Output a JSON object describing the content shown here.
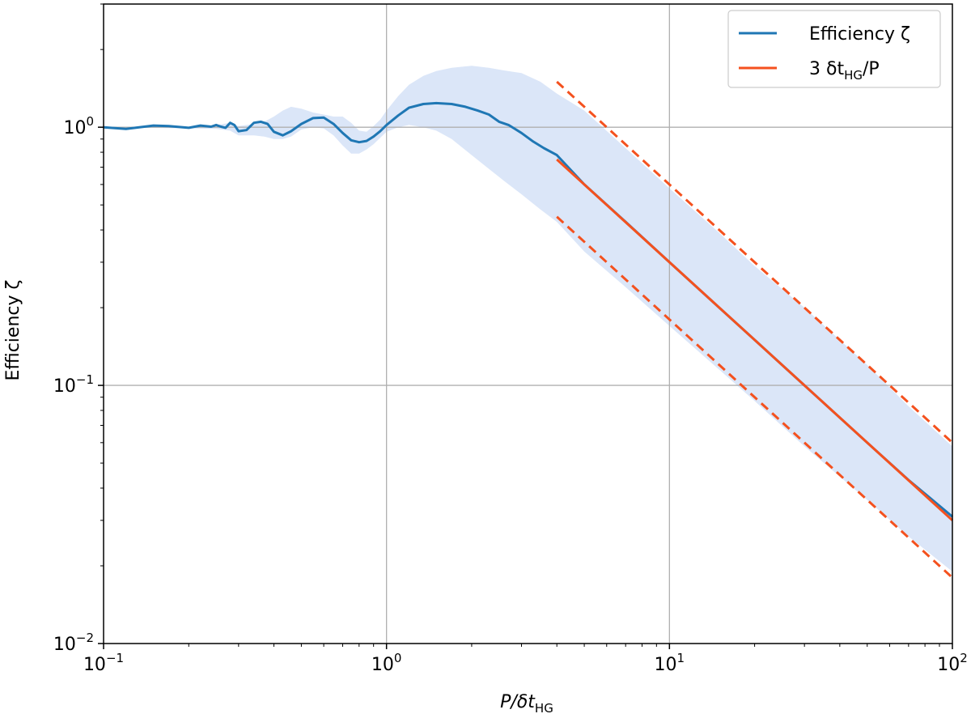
{
  "chart_data": {
    "type": "line",
    "x_scale": "log",
    "y_scale": "log",
    "xlim": [
      0.1,
      100
    ],
    "ylim": [
      0.01,
      3
    ],
    "grid": true,
    "legend_placement": "top-right",
    "xlabel": {
      "base": "P/δt",
      "sub": "HG"
    },
    "ylabel": "Efficiency ζ",
    "x_ticks": [
      {
        "value": 0.1,
        "base": "10",
        "exp": "−1"
      },
      {
        "value": 1,
        "base": "10",
        "exp": "0"
      },
      {
        "value": 10,
        "base": "10",
        "exp": "1"
      },
      {
        "value": 100,
        "base": "10",
        "exp": "2"
      }
    ],
    "y_ticks": [
      {
        "value": 0.01,
        "base": "10",
        "exp": "−2"
      },
      {
        "value": 0.1,
        "base": "10",
        "exp": "−1"
      },
      {
        "value": 1,
        "base": "10",
        "exp": "0"
      }
    ],
    "legend": [
      {
        "label": "Efficiency ζ",
        "color": "#1f77b4"
      },
      {
        "label_main": "3 δt",
        "label_sub": "HG",
        "label_tail": "/P",
        "color": "#f4511e"
      }
    ],
    "series": [
      {
        "name": "Efficiency ζ",
        "color": "#1f77b4",
        "x": [
          0.1,
          0.12,
          0.15,
          0.17,
          0.2,
          0.22,
          0.24,
          0.25,
          0.26,
          0.27,
          0.28,
          0.29,
          0.3,
          0.32,
          0.34,
          0.36,
          0.38,
          0.4,
          0.43,
          0.46,
          0.5,
          0.55,
          0.6,
          0.65,
          0.7,
          0.75,
          0.8,
          0.85,
          0.9,
          0.95,
          1.0,
          1.1,
          1.2,
          1.35,
          1.5,
          1.7,
          1.9,
          2.1,
          2.3,
          2.5,
          2.7,
          3.0,
          3.3,
          3.6,
          4.0,
          5.0,
          7.0,
          10.0,
          15.0,
          20.0,
          30.0,
          50.0,
          70.0,
          100.0
        ],
        "y": [
          1.0,
          0.985,
          1.015,
          1.01,
          0.995,
          1.015,
          1.005,
          1.02,
          1.005,
          0.995,
          1.04,
          1.02,
          0.965,
          0.975,
          1.04,
          1.05,
          1.03,
          0.96,
          0.93,
          0.965,
          1.03,
          1.085,
          1.09,
          1.03,
          0.95,
          0.89,
          0.875,
          0.885,
          0.92,
          0.965,
          1.02,
          1.11,
          1.19,
          1.23,
          1.24,
          1.23,
          1.2,
          1.16,
          1.12,
          1.05,
          1.02,
          0.95,
          0.88,
          0.83,
          0.78,
          0.6,
          0.43,
          0.3,
          0.2,
          0.15,
          0.1,
          0.06,
          0.043,
          0.031
        ]
      },
      {
        "name": "3 δtHG/P",
        "color": "#f4511e",
        "x": [
          4,
          100
        ],
        "y": [
          0.75,
          0.03
        ]
      }
    ],
    "band": {
      "color": "#dbe6f8",
      "x": [
        0.1,
        0.2,
        0.25,
        0.28,
        0.3,
        0.34,
        0.37,
        0.4,
        0.43,
        0.46,
        0.5,
        0.55,
        0.6,
        0.65,
        0.7,
        0.75,
        0.8,
        0.85,
        0.9,
        0.95,
        1.0,
        1.1,
        1.2,
        1.35,
        1.5,
        1.7,
        2.0,
        2.3,
        2.6,
        3.0,
        3.5,
        4.0,
        5.0,
        7.0,
        10.0,
        15.0,
        20.0,
        30.0,
        50.0,
        70.0,
        100.0
      ],
      "upper": [
        1.0,
        1.0,
        1.02,
        1.04,
        1.01,
        1.03,
        1.05,
        1.1,
        1.16,
        1.2,
        1.18,
        1.14,
        1.12,
        1.1,
        1.1,
        1.04,
        0.97,
        0.96,
        1.01,
        1.07,
        1.16,
        1.32,
        1.46,
        1.58,
        1.65,
        1.7,
        1.73,
        1.7,
        1.66,
        1.62,
        1.5,
        1.35,
        1.16,
        0.83,
        0.58,
        0.39,
        0.29,
        0.2,
        0.12,
        0.083,
        0.058
      ],
      "lower": [
        1.0,
        0.99,
        0.985,
        0.97,
        0.93,
        0.93,
        0.92,
        0.9,
        0.9,
        0.92,
        0.98,
        1.0,
        0.99,
        0.93,
        0.85,
        0.79,
        0.79,
        0.82,
        0.86,
        0.91,
        0.96,
        1.0,
        1.02,
        1.0,
        0.97,
        0.9,
        0.78,
        0.69,
        0.62,
        0.55,
        0.48,
        0.43,
        0.33,
        0.24,
        0.17,
        0.115,
        0.087,
        0.058,
        0.036,
        0.026,
        0.019
      ]
    },
    "dashed_lines": [
      {
        "color": "#f4511e",
        "x": [
          4,
          100
        ],
        "y": [
          1.5,
          0.06
        ]
      },
      {
        "color": "#f4511e",
        "x": [
          4,
          100
        ],
        "y": [
          0.45,
          0.018
        ]
      }
    ]
  }
}
